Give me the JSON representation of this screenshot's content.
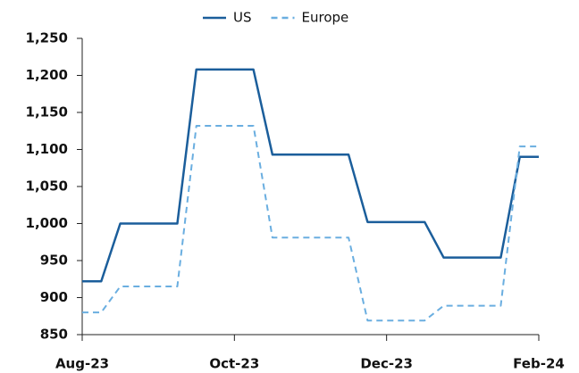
{
  "chart_data": {
    "type": "line",
    "categories": [
      "Aug-23",
      null,
      null,
      null,
      null,
      null,
      null,
      null,
      "Oct-23",
      null,
      null,
      null,
      null,
      null,
      null,
      null,
      "Dec-23",
      null,
      null,
      null,
      null,
      null,
      null,
      null,
      "Feb-24"
    ],
    "series": [
      {
        "name": "US",
        "color": "#1b5e9b",
        "dashed": false,
        "values": [
          922,
          922,
          1000,
          1000,
          1000,
          1000,
          1208,
          1208,
          1208,
          1208,
          1093,
          1093,
          1093,
          1093,
          1093,
          1002,
          1002,
          1002,
          1002,
          954,
          954,
          954,
          954,
          1090,
          1090
        ]
      },
      {
        "name": "Europe",
        "color": "#6aaee0",
        "dashed": true,
        "values": [
          880,
          880,
          915,
          915,
          915,
          915,
          1132,
          1132,
          1132,
          1132,
          981,
          981,
          981,
          981,
          981,
          869,
          869,
          869,
          869,
          889,
          889,
          889,
          889,
          1104,
          1104
        ]
      }
    ],
    "ylim": [
      850,
      1250
    ],
    "yticks": [
      {
        "value": 1250,
        "label": "1,250"
      },
      {
        "value": 1200,
        "label": "1,200"
      },
      {
        "value": 1150,
        "label": "1,150"
      },
      {
        "value": 1100,
        "label": "1,100"
      },
      {
        "value": 1050,
        "label": "1,050"
      },
      {
        "value": 1000,
        "label": "1,000"
      },
      950,
      900,
      850
    ],
    "legend": "top",
    "grid": false
  }
}
